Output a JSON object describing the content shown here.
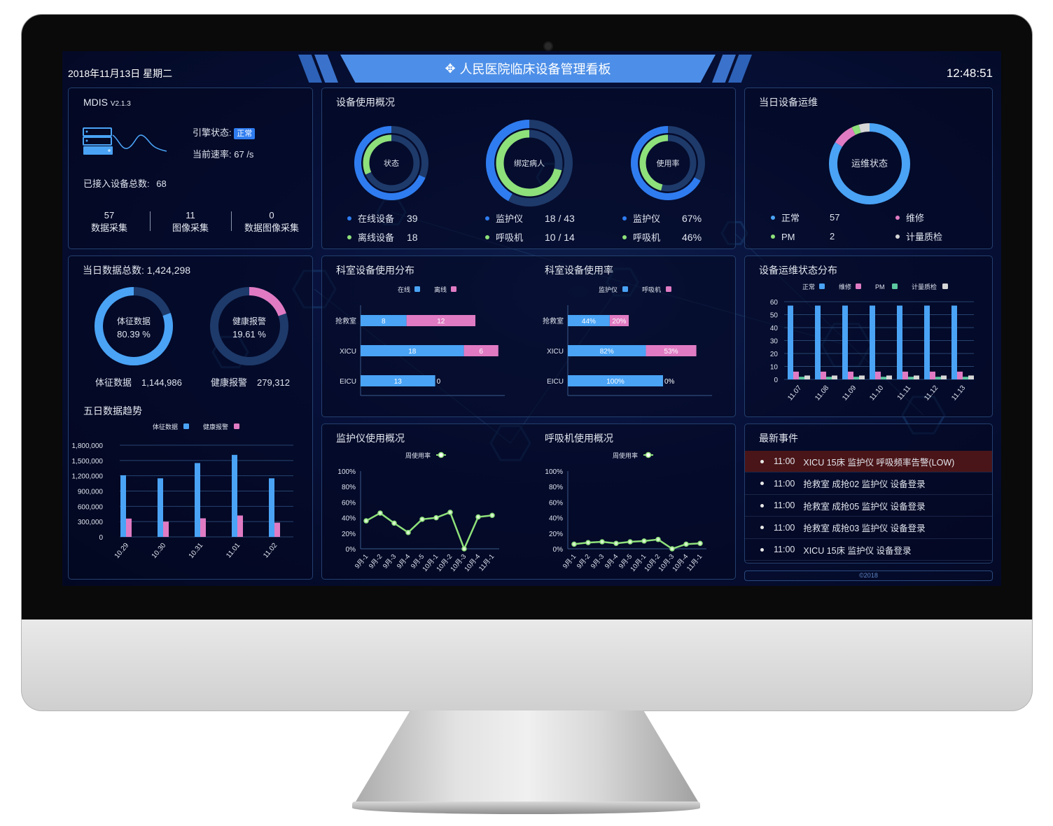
{
  "header": {
    "date": "2018年11月13日 星期二",
    "title": "人民医院临床设备管理看板",
    "time": "12:48:51"
  },
  "system": {
    "name": "MDIS",
    "version": "V2.1.3",
    "engine_label": "引擎状态:",
    "engine_status": "正常",
    "rate_label": "当前速率:",
    "rate_value": "67 /s",
    "total_label": "已接入设备总数:",
    "total_value": "68",
    "stats": [
      {
        "value": "57",
        "label": "数据采集"
      },
      {
        "value": "11",
        "label": "图像采集"
      },
      {
        "value": "0",
        "label": "数据图像采集"
      }
    ]
  },
  "usage": {
    "title": "设备使用概况",
    "donuts": [
      {
        "center": "状态",
        "outer_fraction": 0.684,
        "inner_fraction": 0.316,
        "rows": [
          {
            "label": "在线设备",
            "value": "39"
          },
          {
            "label": "离线设备",
            "value": "18"
          }
        ]
      },
      {
        "center": "绑定病人",
        "outer_fraction": 0.419,
        "inner_fraction": 0.714,
        "rows": [
          {
            "label": "监护仪",
            "value": "18 / 43"
          },
          {
            "label": "呼吸机",
            "value": "10 / 14"
          }
        ]
      },
      {
        "center": "使用率",
        "outer_fraction": 0.67,
        "inner_fraction": 0.46,
        "rows": [
          {
            "label": "监护仪",
            "value": "67%"
          },
          {
            "label": "呼吸机",
            "value": "46%"
          }
        ]
      }
    ]
  },
  "maintenance": {
    "title": "当日设备运维",
    "center": "运维状态",
    "items": [
      {
        "label": "正常",
        "value": 57,
        "color": "#4aa3f5"
      },
      {
        "label": "维修",
        "value": 6,
        "color": "#e07bc3"
      },
      {
        "label": "PM",
        "value": 2,
        "color": "#8ee07a"
      },
      {
        "label": "计量质检",
        "value": 3,
        "color": "#d6d6d6"
      }
    ]
  },
  "daily": {
    "title_label": "当日数据总数:",
    "total": "1,424,298",
    "donuts": [
      {
        "center_label": "体征数据",
        "percent": 80.39,
        "percent_text": "80.39 %",
        "label": "体征数据",
        "value": "1,144,986",
        "color": "#4aa3f5"
      },
      {
        "center_label": "健康报警",
        "percent": 19.61,
        "percent_text": "19.61 %",
        "label": "健康报警",
        "value": "279,312",
        "color": "#e07bc3"
      }
    ]
  },
  "events": {
    "title": "最新事件",
    "items": [
      {
        "time": "11:00",
        "text": "XICU 15床 监护仪 呼吸频率告警(LOW)",
        "alert": true
      },
      {
        "time": "11:00",
        "text": "抢救室 成抢02 监护仪 设备登录",
        "alert": false
      },
      {
        "time": "11:00",
        "text": "抢救室 成抢05 监护仪 设备登录",
        "alert": false
      },
      {
        "time": "11:00",
        "text": "抢救室 成抢03 监护仪 设备登录",
        "alert": false
      },
      {
        "time": "11:00",
        "text": "XICU 15床 监护仪 设备登录",
        "alert": false
      }
    ]
  },
  "footer": "©2018",
  "colors": {
    "blue": "#4aa3f5",
    "deep_blue": "#2f7cf0",
    "pink": "#e07bc3",
    "green": "#8ee07a",
    "gray": "#d6d6d6",
    "track": "#1e3a6a",
    "alert_row": "#4a1518",
    "banner": "#4d8fe8"
  },
  "chart_data": [
    {
      "id": "five_day",
      "type": "bar",
      "title": "五日数据趋势",
      "categories": [
        "10.29",
        "10.30",
        "10.31",
        "11.01",
        "11.02"
      ],
      "series": [
        {
          "name": "体征数据",
          "values": [
            1210000,
            1150000,
            1450000,
            1610000,
            1150000
          ],
          "color": "#4aa3f5"
        },
        {
          "name": "健康报警",
          "values": [
            360000,
            300000,
            365000,
            420000,
            280000
          ],
          "color": "#e07bc3"
        }
      ],
      "ylim": [
        0,
        1800000
      ],
      "yticks": [
        "0",
        "300,000",
        "600,000",
        "900,000",
        "1,200,000",
        "1,500,000",
        "1,800,000"
      ],
      "grid": true,
      "legend": "top"
    },
    {
      "id": "dept_dist",
      "type": "bar",
      "orientation": "horizontal",
      "stacked": true,
      "title": "科室设备使用分布",
      "categories": [
        "抢救室",
        "XICU",
        "EICU"
      ],
      "series": [
        {
          "name": "在线",
          "values": [
            8,
            18,
            13
          ],
          "color": "#4aa3f5"
        },
        {
          "name": "离线",
          "values": [
            12,
            6,
            0
          ],
          "color": "#e07bc3"
        }
      ],
      "legend": "top"
    },
    {
      "id": "dept_rate",
      "type": "bar",
      "orientation": "horizontal",
      "stacked": true,
      "title": "科室设备使用率",
      "unit": "%",
      "categories": [
        "抢救室",
        "XICU",
        "EICU"
      ],
      "series": [
        {
          "name": "监护仪",
          "values": [
            44,
            82,
            100
          ],
          "color": "#4aa3f5"
        },
        {
          "name": "呼吸机",
          "values": [
            20,
            53,
            0
          ],
          "color": "#e07bc3"
        }
      ],
      "legend": "top"
    },
    {
      "id": "maint_dist",
      "type": "bar",
      "title": "设备运维状态分布",
      "categories": [
        "11.07",
        "11.08",
        "11.09",
        "11.10",
        "11.11",
        "11.12",
        "11.13"
      ],
      "series": [
        {
          "name": "正常",
          "values": [
            57,
            57,
            57,
            57,
            57,
            57,
            57
          ],
          "color": "#4aa3f5"
        },
        {
          "name": "维修",
          "values": [
            6,
            6,
            6,
            6,
            6,
            6,
            6
          ],
          "color": "#e07bc3"
        },
        {
          "name": "PM",
          "values": [
            2,
            2,
            2,
            2,
            2,
            2,
            2
          ],
          "color": "#5cc9a0"
        },
        {
          "name": "计量质检",
          "values": [
            3,
            3,
            3,
            3,
            3,
            3,
            3
          ],
          "color": "#d6d6d6"
        }
      ],
      "ylim": [
        0,
        60
      ],
      "yticks": [
        "0",
        "10",
        "20",
        "30",
        "40",
        "50",
        "60"
      ],
      "grid": true,
      "legend": "top"
    },
    {
      "id": "monitor",
      "type": "line",
      "title": "监护仪使用概况",
      "x": [
        "9月-1",
        "9月-2",
        "9月-3",
        "9月-4",
        "9月-5",
        "10月-1",
        "10月-2",
        "10月-3",
        "10月-4",
        "11月-1"
      ],
      "series": [
        {
          "name": "周使用率",
          "values": [
            36,
            46,
            33,
            21,
            38,
            40,
            47,
            0,
            41,
            43
          ],
          "color": "#8ee07a"
        }
      ],
      "ylim": [
        0,
        100
      ],
      "yticks": [
        "0%",
        "20%",
        "40%",
        "60%",
        "80%",
        "100%"
      ],
      "legend": "top"
    },
    {
      "id": "vent",
      "type": "line",
      "title": "呼吸机使用概况",
      "x": [
        "9月-1",
        "9月-2",
        "9月-3",
        "9月-4",
        "9月-5",
        "10月-1",
        "10月-2",
        "10月-3",
        "10月-4",
        "11月-1"
      ],
      "series": [
        {
          "name": "周使用率",
          "values": [
            6,
            8,
            9,
            7,
            9,
            10,
            12,
            0,
            6,
            7
          ],
          "color": "#8ee07a"
        }
      ],
      "ylim": [
        0,
        100
      ],
      "yticks": [
        "0%",
        "20%",
        "40%",
        "60%",
        "80%",
        "100%"
      ],
      "legend": "top"
    }
  ]
}
